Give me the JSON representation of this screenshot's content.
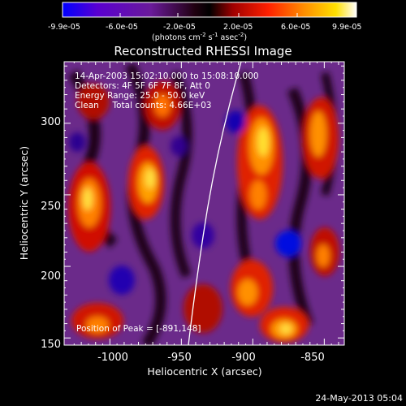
{
  "colorbar": {
    "tick_labels": [
      "-9.9e-05",
      "-6.0e-05",
      "-2.0e-05",
      "2.0e-05",
      "6.0e-05",
      "9.9e-05"
    ],
    "units_text": "(photons cm",
    "units_sup1": "-2",
    "units_mid": " s",
    "units_sup2": "-1",
    "units_end": " asec",
    "units_sup3": "-2",
    "units_close": ")",
    "range": [
      -9.9e-05,
      9.9e-05
    ],
    "colors": [
      "#0000ff",
      "#6a00c8",
      "#7a1a8a",
      "#000000",
      "#b00000",
      "#ff2000",
      "#ff9000",
      "#ffe000",
      "#ffffff"
    ]
  },
  "image": {
    "title": "Reconstructed RHESSI Image",
    "info_lines": [
      "14-Apr-2003 15:02:10.000 to 15:08:10.000",
      "Detectors: 4F 5F 6F 7F 8F, Att 0",
      "Energy Range: 25.0 - 50.0 keV",
      "Clean     Total counts: 4.66E+03"
    ],
    "peak_label": "Position of Peak = [-891,148]",
    "xlabel": "Heliocentric X (arcsec)",
    "ylabel": "Heliocentric Y (arcsec)",
    "x_ticks": [
      "-1000",
      "-950",
      "-900",
      "-850"
    ],
    "y_ticks": [
      "150",
      "200",
      "250",
      "300"
    ],
    "xlim": [
      -1032,
      -836
    ],
    "ylim": [
      145,
      343
    ],
    "limb_color": "#ffffff"
  },
  "footer": {
    "timestamp": "24-May-2013 05:04"
  }
}
